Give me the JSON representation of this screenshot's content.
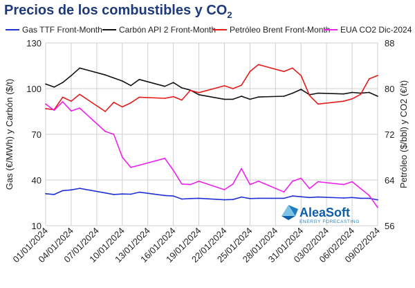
{
  "title_main": "Precios de los combustibles y CO",
  "title_sub": "2",
  "logo": {
    "brand": "AleaSoft",
    "tagline": "ENERGY FORECASTING",
    "colors": [
      "#7ec3e6",
      "#1f7fc0",
      "#0d5ea8"
    ]
  },
  "chart_data": {
    "type": "line",
    "x": [
      "01/01/2024",
      "02/01/2024",
      "03/01/2024",
      "04/01/2024",
      "05/01/2024",
      "08/01/2024",
      "09/01/2024",
      "10/01/2024",
      "11/01/2024",
      "12/01/2024",
      "15/01/2024",
      "16/01/2024",
      "17/01/2024",
      "18/01/2024",
      "19/01/2024",
      "22/01/2024",
      "23/01/2024",
      "24/01/2024",
      "25/01/2024",
      "26/01/2024",
      "29/01/2024",
      "30/01/2024",
      "31/01/2024",
      "01/02/2024",
      "02/02/2024",
      "05/02/2024",
      "06/02/2024",
      "07/02/2024",
      "08/02/2024",
      "09/02/2024"
    ],
    "xticks": [
      "01/01/2024",
      "04/01/2024",
      "07/01/2024",
      "10/01/2024",
      "13/01/2024",
      "16/01/2024",
      "19/01/2024",
      "22/01/2024",
      "25/01/2024",
      "28/01/2024",
      "31/01/2024",
      "03/02/2024",
      "06/02/2024",
      "09/02/2024"
    ],
    "xlim": [
      "01/01/2024",
      "09/02/2024"
    ],
    "left_axis": {
      "label": "Gas (€/MWh) y Carbón ($/t)",
      "ylim": [
        10,
        130
      ],
      "ticks": [
        10,
        40,
        70,
        100,
        130
      ]
    },
    "right_axis": {
      "label": "Petróleo ($/bbl) y CO2 (€/t)",
      "ylim": [
        56,
        88
      ],
      "ticks": [
        56,
        64,
        72,
        80,
        88
      ]
    },
    "grid": true,
    "legend_position": "top",
    "series": [
      {
        "name": "Gas TTF Front-Month",
        "axis": "left",
        "color": "#1f2fd6",
        "values": [
          31.0,
          30.5,
          33.0,
          33.5,
          34.5,
          31.5,
          30.5,
          30.8,
          30.7,
          32.0,
          29.8,
          29.5,
          27.5,
          27.8,
          28.0,
          27.0,
          27.2,
          28.8,
          27.8,
          28.0,
          28.0,
          29.5,
          29.0,
          28.5,
          28.8,
          28.2,
          28.5,
          28.0,
          28.0,
          27.0
        ]
      },
      {
        "name": "Carbón API 2 Front-Month",
        "axis": "left",
        "color": "#111111",
        "values": [
          103.0,
          101.0,
          104.0,
          108.5,
          113.5,
          109.0,
          107.0,
          105.0,
          102.0,
          106.0,
          101.5,
          104.0,
          100.5,
          99.0,
          96.0,
          93.0,
          93.0,
          95.0,
          93.0,
          94.5,
          95.0,
          97.0,
          99.5,
          96.0,
          97.0,
          96.5,
          97.5,
          97.0,
          97.5,
          95.0
        ]
      },
      {
        "name": "Petróleo Brent Front-Month",
        "axis": "right",
        "color": "#e51a1a",
        "values": [
          76.5,
          76.3,
          78.5,
          77.8,
          79.0,
          76.0,
          77.6,
          76.8,
          77.5,
          78.5,
          78.3,
          78.6,
          78.0,
          79.7,
          79.3,
          80.5,
          80.0,
          80.6,
          83.0,
          84.2,
          83.0,
          83.6,
          82.3,
          78.8,
          77.3,
          77.8,
          78.2,
          79.0,
          81.7,
          82.3
        ]
      },
      {
        "name": "EUA CO2 Dic-2024",
        "axis": "right",
        "color": "#ef1fef",
        "values": [
          77.3,
          76.2,
          77.7,
          76.1,
          76.6,
          72.5,
          72.0,
          68.0,
          66.2,
          66.6,
          67.8,
          65.7,
          63.3,
          63.2,
          63.8,
          62.3,
          63.3,
          66.0,
          63.2,
          63.8,
          61.9,
          63.8,
          64.3,
          62.5,
          63.7,
          63.2,
          63.7,
          62.5,
          61.3,
          59.2
        ]
      }
    ]
  }
}
